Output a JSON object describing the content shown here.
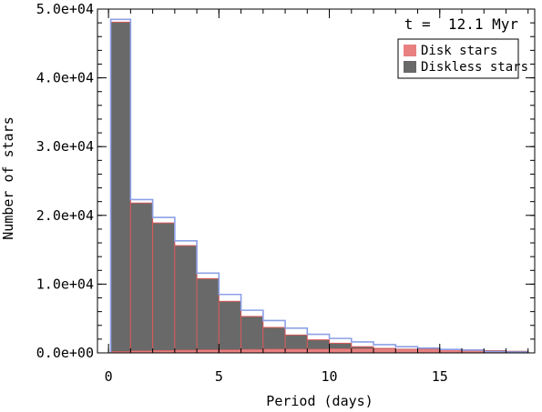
{
  "chart_data": {
    "type": "bar",
    "annotation": "t =  12.1 Myr",
    "xlabel": "Period (days)",
    "ylabel": "Number of stars",
    "xlim": [
      -0.5,
      19.3
    ],
    "ylim": [
      0,
      50000
    ],
    "xticks": [
      {
        "value": 0,
        "label": "0"
      },
      {
        "value": 5,
        "label": "5"
      },
      {
        "value": 10,
        "label": "10"
      },
      {
        "value": 15,
        "label": "15"
      }
    ],
    "xminor_step": 1,
    "yticks": [
      {
        "value": 0,
        "label": "0.0e+00"
      },
      {
        "value": 10000,
        "label": "1.0e+04"
      },
      {
        "value": 20000,
        "label": "2.0e+04"
      },
      {
        "value": 30000,
        "label": "3.0e+04"
      },
      {
        "value": 40000,
        "label": "4.0e+04"
      },
      {
        "value": 50000,
        "label": "5.0e+04"
      }
    ],
    "yminor_step": 2000,
    "bin_edges": [
      0.1,
      1,
      2,
      3,
      4,
      5,
      6,
      7,
      8,
      9,
      10,
      11,
      12,
      13,
      14,
      15,
      16,
      17,
      18,
      19
    ],
    "series": [
      {
        "name": "Disk stars",
        "color": "#e88080",
        "values": [
          200,
          300,
          350,
          400,
          450,
          450,
          500,
          550,
          550,
          550,
          600,
          600,
          600,
          550,
          550,
          500,
          450,
          350,
          250
        ]
      },
      {
        "name": "Diskless stars",
        "color": "#696969",
        "values": [
          48100,
          21800,
          18900,
          15600,
          10800,
          7500,
          5300,
          3700,
          2600,
          1900,
          1400,
          900,
          650,
          500,
          300,
          250,
          200,
          150,
          100
        ]
      }
    ],
    "total_outline": {
      "color": "#8ca0e6",
      "values": [
        48500,
        22300,
        19700,
        16300,
        11600,
        8500,
        6200,
        4700,
        3600,
        2700,
        2100,
        1600,
        1200,
        900,
        700,
        500,
        400,
        200,
        120
      ]
    },
    "legend_position": "top-right",
    "grid": false
  }
}
